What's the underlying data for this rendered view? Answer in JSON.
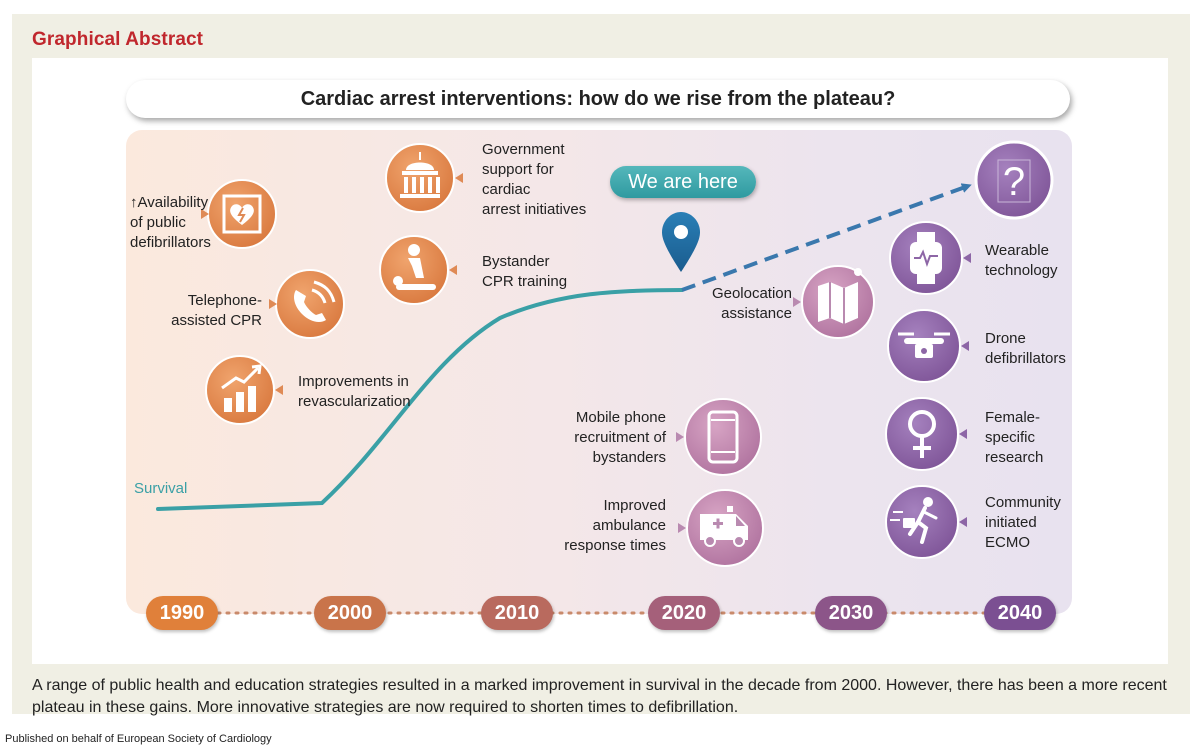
{
  "header": {
    "label": "Graphical Abstract"
  },
  "banner": {
    "title": "Cardiac arrest interventions: how do we rise from the plateau?"
  },
  "curve": {
    "label": "Survival"
  },
  "marker": {
    "label": "We are here"
  },
  "interventions_past": [
    {
      "lines": [
        "Availability",
        "of public",
        "defibrillators"
      ],
      "arrow": "↑",
      "icon": "defibrillator-icon"
    },
    {
      "lines": [
        "Telephone-",
        "assisted CPR"
      ],
      "icon": "phone-icon"
    },
    {
      "lines": [
        "Improvements in",
        "revascularization"
      ],
      "icon": "growth-chart-icon"
    },
    {
      "lines": [
        "Government",
        "support for",
        "cardiac",
        "arrest initiatives"
      ],
      "icon": "government-building-icon"
    },
    {
      "lines": [
        "Bystander",
        "CPR training"
      ],
      "icon": "cpr-icon"
    }
  ],
  "interventions_present": [
    {
      "lines": [
        "Geolocation",
        "assistance"
      ],
      "icon": "map-icon"
    },
    {
      "lines": [
        "Mobile phone",
        "recruitment of",
        "bystanders"
      ],
      "icon": "mobile-phone-icon"
    },
    {
      "lines": [
        "Improved",
        "ambulance",
        "response times"
      ],
      "icon": "ambulance-icon"
    }
  ],
  "interventions_future": [
    {
      "lines": [
        "Wearable",
        "technology"
      ],
      "icon": "smartwatch-icon"
    },
    {
      "lines": [
        "Drone",
        "defibrillators"
      ],
      "icon": "drone-icon"
    },
    {
      "lines": [
        "Female-",
        "specific",
        "research"
      ],
      "icon": "female-symbol-icon"
    },
    {
      "lines": [
        "Community",
        "initiated",
        "ECMO"
      ],
      "icon": "runner-with-case-icon"
    }
  ],
  "unknown": {
    "symbol": "?",
    "icon": "question-mark-icon"
  },
  "timeline": {
    "years": [
      "1990",
      "2000",
      "2010",
      "2020",
      "2030",
      "2040"
    ],
    "colors": [
      "#e0803a",
      "#c9744a",
      "#b96a5e",
      "#a5607a",
      "#8c5589",
      "#7b4f92"
    ]
  },
  "colors": {
    "past": "#df8a55",
    "present": "#b98ab0",
    "future": "#8d66a6",
    "curve": "#3aa0a6",
    "accent": "#c0272d"
  },
  "caption": "A range of public health and education strategies resulted in a marked improvement in survival in the decade from 2000. However, there has been a more recent plateau in these gains. More innovative strategies are now required to shorten times to defibrillation.",
  "footer": "Published on behalf of European Society of Cardiology"
}
